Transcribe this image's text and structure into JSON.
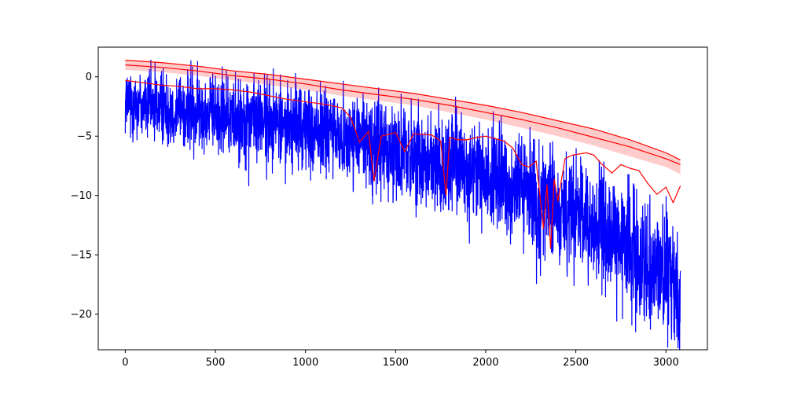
{
  "chart_data": {
    "type": "line",
    "title": "",
    "xlabel": "",
    "ylabel": "",
    "xlim": [
      -150,
      3230
    ],
    "ylim": [
      -23,
      2.5
    ],
    "grid": false,
    "legend": "none",
    "x_ticks": [
      0,
      500,
      1000,
      1500,
      2000,
      2500,
      3000
    ],
    "y_ticks": [
      0,
      -5,
      -10,
      -15,
      -20
    ],
    "x_tick_labels": [
      "0",
      "500",
      "1000",
      "1500",
      "2000",
      "2500",
      "3000"
    ],
    "y_tick_labels": [
      "0",
      "−5",
      "−10",
      "−15",
      "−20"
    ],
    "colors": {
      "signal": "#0000ff",
      "threshold_lines": "#ff0000",
      "threshold_band": "#ff0000"
    },
    "series": [
      {
        "kind": "noisy_line",
        "color": "#0000ff",
        "x_range": [
          0,
          3080
        ],
        "n_points": 3080,
        "trend": {
          "x": [
            0,
            300,
            600,
            900,
            1200,
            1500,
            1800,
            2000,
            2200,
            2400,
            2600,
            2800,
            3000,
            3080
          ],
          "y": [
            -2.0,
            -2.8,
            -3.3,
            -4.0,
            -5.0,
            -6.0,
            -7.3,
            -8.3,
            -9.5,
            -11.0,
            -12.5,
            -14.5,
            -16.5,
            -18.5
          ]
        },
        "noise_amplitude": {
          "x": [
            0,
            1000,
            2000,
            3080
          ],
          "y": [
            1.5,
            1.8,
            2.2,
            2.6
          ]
        }
      },
      {
        "kind": "line",
        "color": "#ff0000",
        "x": [
          0,
          200,
          400,
          600,
          800,
          1000,
          1200,
          1400,
          1600,
          1800,
          2000,
          2200,
          2400,
          2600,
          2800,
          3000,
          3080
        ],
        "y": [
          1.0,
          0.8,
          0.5,
          0.1,
          -0.2,
          -0.6,
          -1.1,
          -1.5,
          -1.9,
          -2.4,
          -3.0,
          -3.6,
          -4.3,
          -5.1,
          -5.9,
          -6.9,
          -7.4
        ]
      },
      {
        "kind": "band",
        "color": "#ff0000",
        "opacity": 0.2,
        "x": [
          0,
          200,
          400,
          600,
          800,
          1000,
          1200,
          1400,
          1600,
          1800,
          2000,
          2200,
          2400,
          2600,
          2800,
          3000,
          3080
        ],
        "upper": [
          1.4,
          1.2,
          0.9,
          0.5,
          0.2,
          -0.2,
          -0.6,
          -1.0,
          -1.4,
          -1.9,
          -2.4,
          -3.0,
          -3.7,
          -4.4,
          -5.3,
          -6.4,
          -7.0
        ],
        "lower": [
          0.6,
          0.4,
          0.1,
          -0.3,
          -0.7,
          -1.1,
          -1.6,
          -2.0,
          -2.4,
          -3.0,
          -3.6,
          -4.3,
          -5.0,
          -5.8,
          -6.7,
          -7.6,
          -8.2
        ]
      },
      {
        "kind": "line",
        "color": "#ff0000",
        "x": [
          0,
          100,
          200,
          300,
          400,
          500,
          600,
          700,
          800,
          900,
          1000,
          1100,
          1200,
          1250,
          1300,
          1350,
          1380,
          1420,
          1500,
          1550,
          1600,
          1700,
          1750,
          1780,
          1800,
          1850,
          1900,
          1950,
          2000,
          2050,
          2100,
          2150,
          2200,
          2240,
          2280,
          2320,
          2340,
          2360,
          2380,
          2400,
          2440,
          2480,
          2520,
          2560,
          2600,
          2640,
          2700,
          2750,
          2800,
          2850,
          2900,
          2950,
          3000,
          3040,
          3080
        ],
        "y": [
          -0.3,
          -0.5,
          -0.7,
          -0.8,
          -1.0,
          -1.0,
          -1.1,
          -1.3,
          -1.6,
          -1.9,
          -2.1,
          -2.3,
          -2.6,
          -3.4,
          -5.5,
          -4.6,
          -8.8,
          -5.0,
          -4.7,
          -6.3,
          -4.8,
          -4.9,
          -5.4,
          -10.0,
          -5.1,
          -5.3,
          -5.3,
          -5.1,
          -5.0,
          -5.2,
          -5.4,
          -6.0,
          -7.4,
          -7.6,
          -7.1,
          -12.8,
          -9.1,
          -14.5,
          -8.6,
          -10.5,
          -6.9,
          -6.6,
          -6.5,
          -6.4,
          -6.6,
          -7.3,
          -8.1,
          -7.4,
          -7.7,
          -7.9,
          -9.0,
          -9.9,
          -9.3,
          -10.6,
          -9.2
        ]
      }
    ]
  }
}
